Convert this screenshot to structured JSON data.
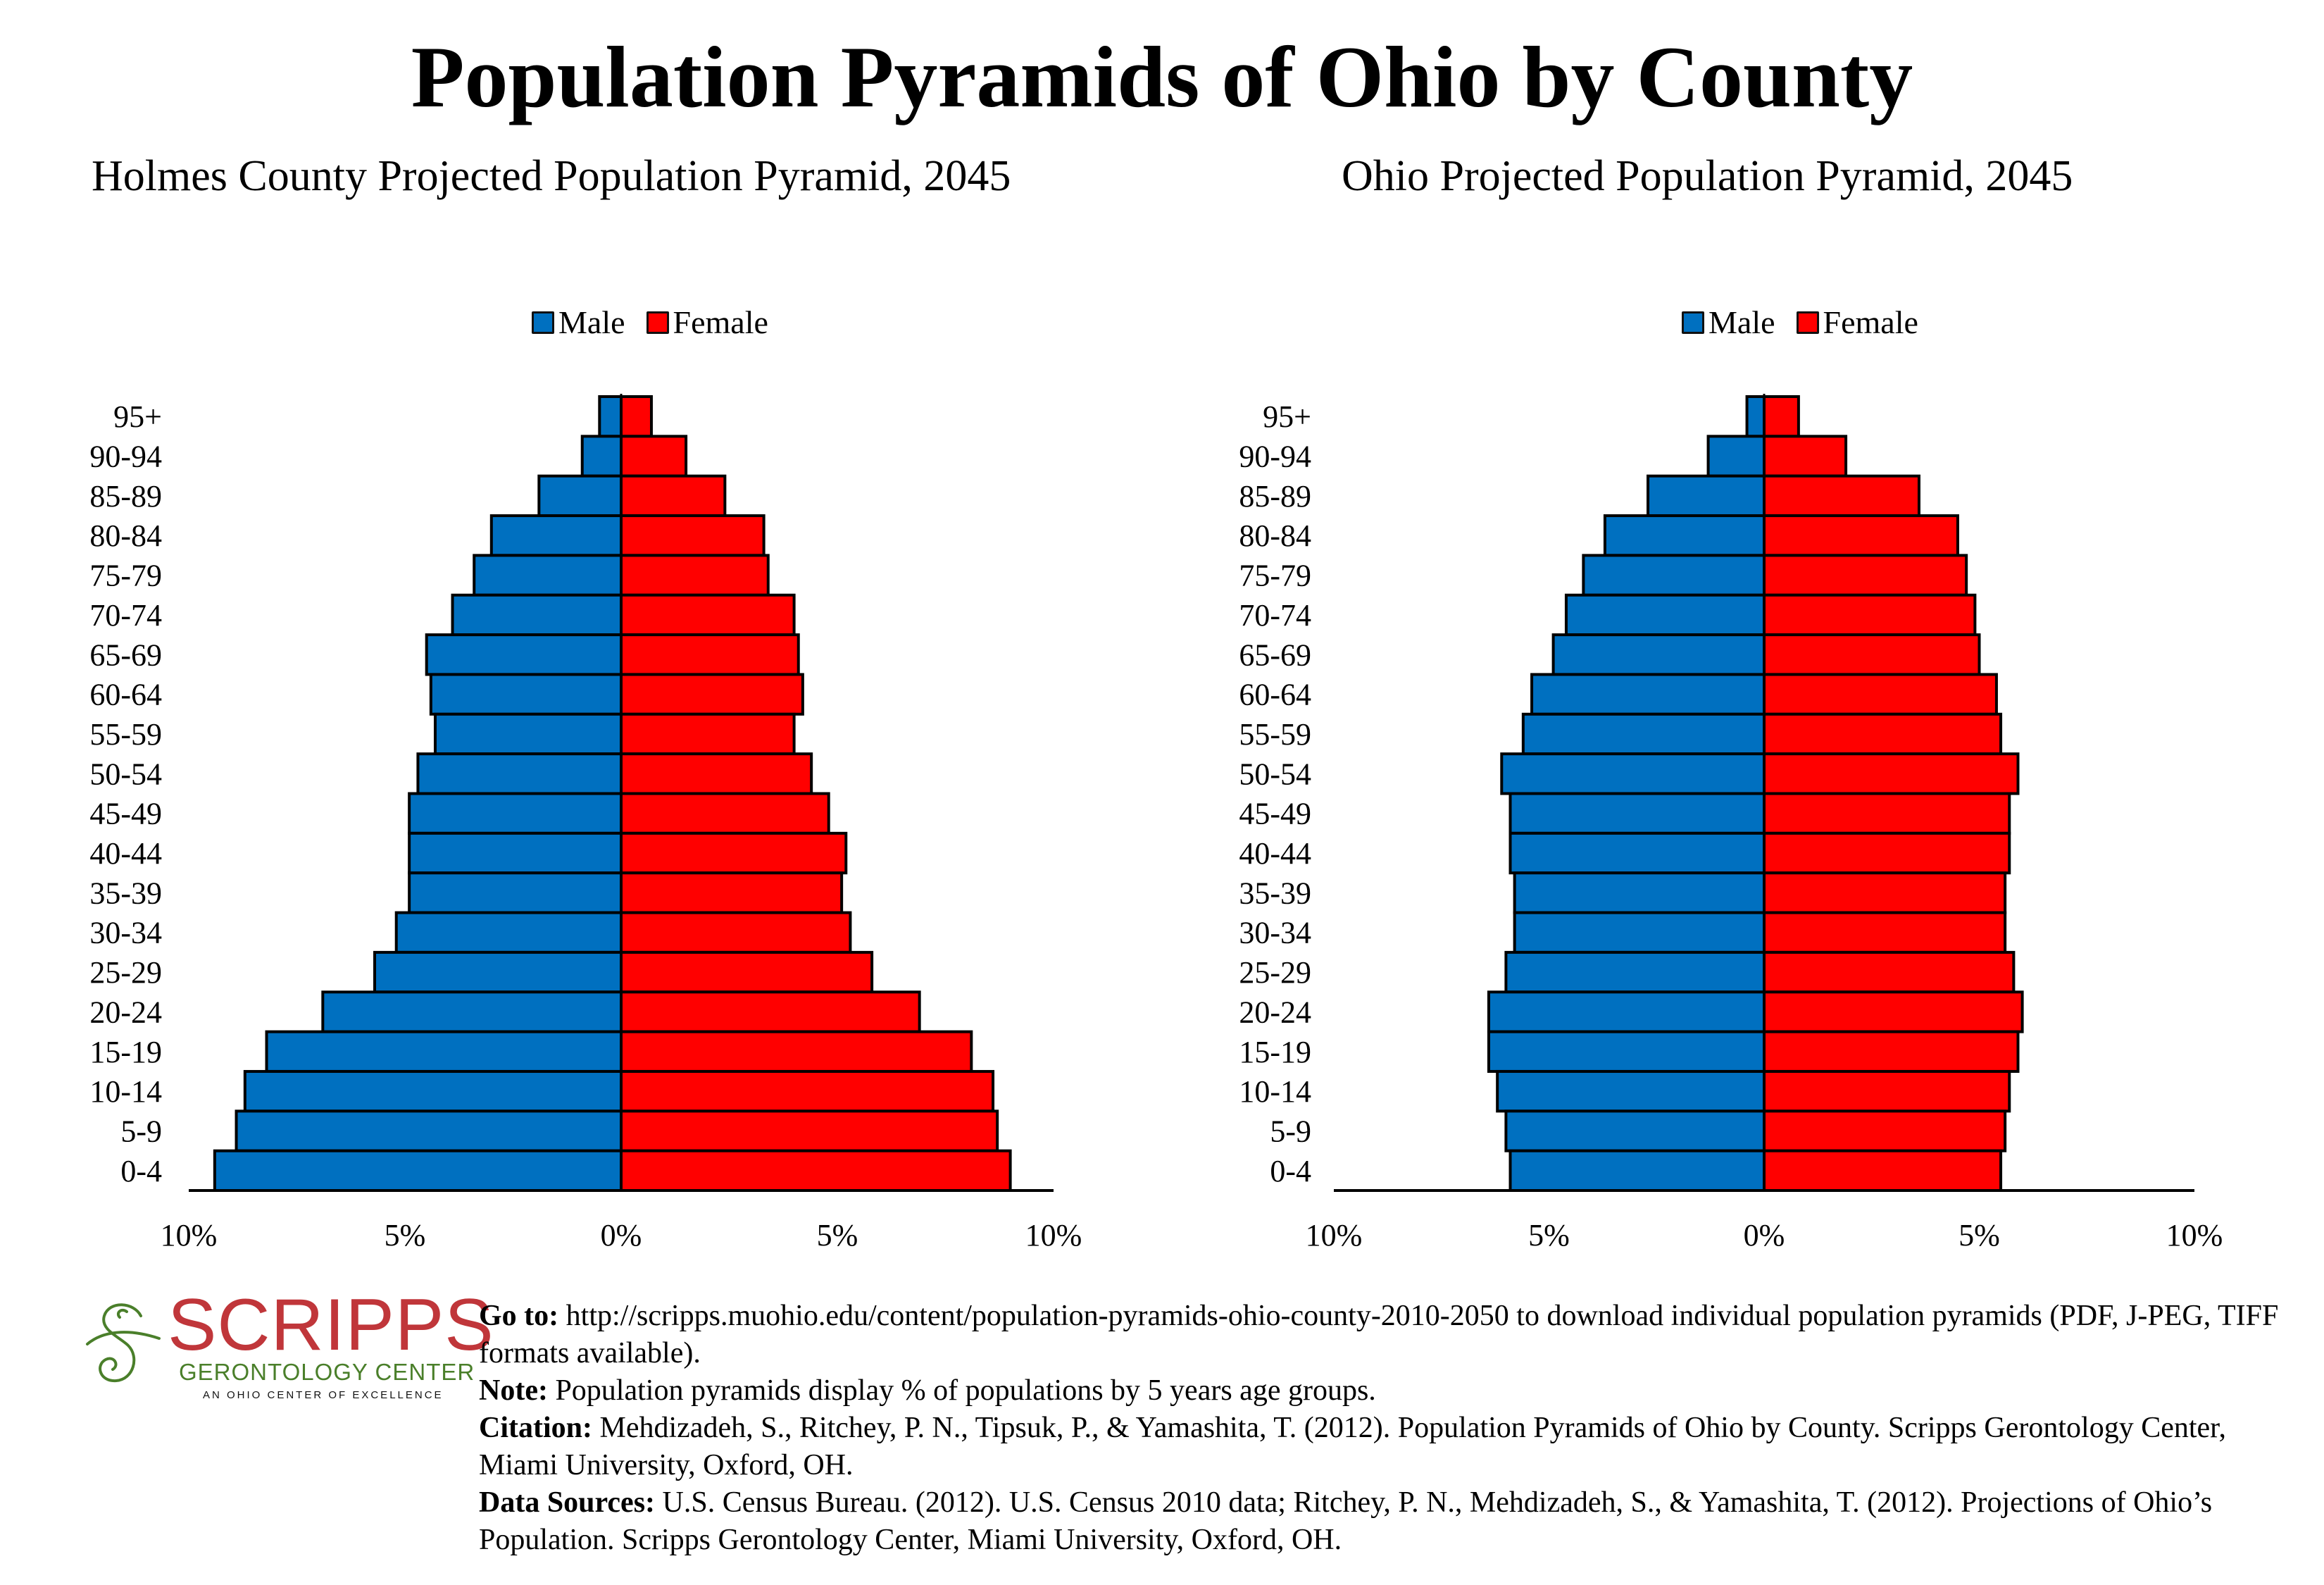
{
  "title": "Population Pyramids of Ohio by County",
  "colors": {
    "male": "#0070c0",
    "female": "#ff0000",
    "bar_border": "#000000",
    "logo_red": "#c0363a",
    "logo_green": "#4a7f2a"
  },
  "chart_data": [
    {
      "type": "bar",
      "orientation": "horizontal-pyramid",
      "title": "Holmes County Projected Population Pyramid, 2045",
      "xlabel": "",
      "ylabel": "",
      "x_range": [
        -10,
        10
      ],
      "x_ticks": [
        -10,
        -5,
        0,
        5,
        10
      ],
      "x_tick_labels": [
        "10%",
        "5%",
        "0%",
        "5%",
        "10%"
      ],
      "legend": {
        "position": "top-center",
        "entries": [
          "Male",
          "Female"
        ]
      },
      "grid": false,
      "categories": [
        "95+",
        "90-94",
        "85-89",
        "80-84",
        "75-79",
        "70-74",
        "65-69",
        "60-64",
        "55-59",
        "50-54",
        "45-49",
        "40-44",
        "35-39",
        "30-34",
        "25-29",
        "20-24",
        "15-19",
        "10-14",
        "5-9",
        "0-4"
      ],
      "series": [
        {
          "name": "Male",
          "values": [
            0.5,
            0.9,
            1.9,
            3.0,
            3.4,
            3.9,
            4.5,
            4.4,
            4.3,
            4.7,
            4.9,
            4.9,
            4.9,
            5.2,
            5.7,
            6.9,
            8.2,
            8.7,
            8.9,
            9.4
          ]
        },
        {
          "name": "Female",
          "values": [
            0.7,
            1.5,
            2.4,
            3.3,
            3.4,
            4.0,
            4.1,
            4.2,
            4.0,
            4.4,
            4.8,
            5.2,
            5.1,
            5.3,
            5.8,
            6.9,
            8.1,
            8.6,
            8.7,
            9.0
          ]
        }
      ]
    },
    {
      "type": "bar",
      "orientation": "horizontal-pyramid",
      "title": "Ohio Projected Population Pyramid, 2045",
      "xlabel": "",
      "ylabel": "",
      "x_range": [
        -10,
        10
      ],
      "x_ticks": [
        -10,
        -5,
        0,
        5,
        10
      ],
      "x_tick_labels": [
        "10%",
        "5%",
        "0%",
        "5%",
        "10%"
      ],
      "legend": {
        "position": "top-center",
        "entries": [
          "Male",
          "Female"
        ]
      },
      "grid": false,
      "categories": [
        "95+",
        "90-94",
        "85-89",
        "80-84",
        "75-79",
        "70-74",
        "65-69",
        "60-64",
        "55-59",
        "50-54",
        "45-49",
        "40-44",
        "35-39",
        "30-34",
        "25-29",
        "20-24",
        "15-19",
        "10-14",
        "5-9",
        "0-4"
      ],
      "series": [
        {
          "name": "Male",
          "values": [
            0.4,
            1.3,
            2.7,
            3.7,
            4.2,
            4.6,
            4.9,
            5.4,
            5.6,
            6.1,
            5.9,
            5.9,
            5.8,
            5.8,
            6.0,
            6.4,
            6.4,
            6.2,
            6.0,
            5.9
          ]
        },
        {
          "name": "Female",
          "values": [
            0.8,
            1.9,
            3.6,
            4.5,
            4.7,
            4.9,
            5.0,
            5.4,
            5.5,
            5.9,
            5.7,
            5.7,
            5.6,
            5.6,
            5.8,
            6.0,
            5.9,
            5.7,
            5.6,
            5.5
          ]
        }
      ]
    }
  ],
  "logo": {
    "icon": "swirl-s-icon",
    "word": "SCRIPPS",
    "subtitle": "GERONTOLOGY CENTER",
    "tagline": "AN OHIO CENTER OF EXCELLENCE"
  },
  "footer": {
    "goto_label": "Go to:",
    "goto_text": " http://scripps.muohio.edu/content/population-pyramids-ohio-county-2010-2050 to download individual population pyramids (PDF, J-PEG, TIFF formats available).",
    "note_label": "Note:",
    "note_text": " Population pyramids display % of populations by 5 years age groups.",
    "citation_label": "Citation:",
    "citation_text": " Mehdizadeh, S., Ritchey, P. N., Tipsuk, P., & Yamashita, T. (2012). Population Pyramids of Ohio by County. Scripps Gerontology Center, Miami University, Oxford, OH.",
    "sources_label": "Data Sources:",
    "sources_text": " U.S. Census Bureau. (2012). U.S. Census 2010 data; Ritchey, P. N., Mehdizadeh, S., & Yamashita, T. (2012). Projections of Ohio’s Population. Scripps Gerontology Center, Miami University, Oxford, OH."
  }
}
